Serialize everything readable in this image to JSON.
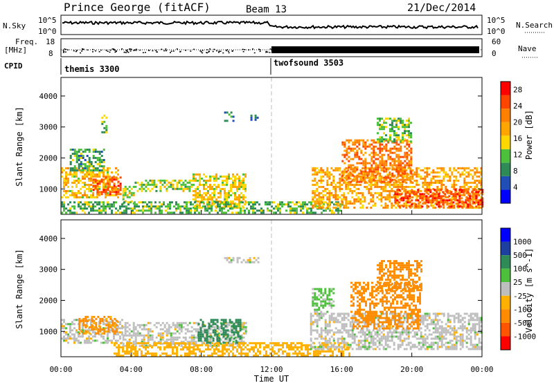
{
  "header": {
    "title": "Prince George (fitACF)",
    "beam": "Beam 13",
    "date": "21/Dec/2014"
  },
  "status_panels": {
    "nsky_label": "N.Sky",
    "nsearch_label": "N.Search",
    "nsky_ticks": [
      "10^5",
      "10^0"
    ],
    "nsearch_ticks": [
      "10^5",
      "10^0"
    ],
    "freq_label": "Freq.",
    "freq_unit": "[MHz]",
    "freq_ticks": [
      "18",
      "8"
    ],
    "nave_label": "Nave",
    "nave_ticks": [
      "60",
      "0"
    ],
    "cpid_label": "CPID",
    "cpid_segments": [
      {
        "name": "themis 3300",
        "start_hour": 0
      },
      {
        "name": "twofsound 3503",
        "start_hour": 12
      }
    ]
  },
  "colors": {
    "power_scale": [
      "#0000ff",
      "#1f4fb4",
      "#2e8b57",
      "#4cbf3c",
      "#ffd700",
      "#ffa500",
      "#ff7f00",
      "#ff4500",
      "#ff0000"
    ],
    "velocity_scale": [
      "#0000ff",
      "#1c3fa0",
      "#2e8b57",
      "#4cbf3c",
      "#bebebe",
      "#ffb000",
      "#ff8c00",
      "#ff5500",
      "#ff0000"
    ],
    "ground_scatter": "#c0c0c0"
  },
  "chart_data": [
    {
      "type": "heatmap",
      "name": "power",
      "ylabel": "Slant Range [km]",
      "xlim_hours": [
        0,
        24
      ],
      "ylim": [
        180,
        4600
      ],
      "y_ticks": [
        1000,
        2000,
        3000,
        4000
      ],
      "colorbar_label": "Power [dB]",
      "colorbar_ticks": [
        4,
        8,
        12,
        16,
        20,
        24,
        28
      ],
      "clim": [
        0,
        30
      ],
      "regions": [
        {
          "t0": 0.0,
          "t1": 3.2,
          "r0": 700,
          "r1": 1700,
          "v": 17
        },
        {
          "t0": 1.8,
          "t1": 3.4,
          "r0": 800,
          "r1": 1400,
          "v": 25
        },
        {
          "t0": 0.5,
          "t1": 2.5,
          "r0": 1600,
          "r1": 2300,
          "v": 10
        },
        {
          "t0": 2.3,
          "t1": 2.6,
          "r0": 2800,
          "r1": 3400,
          "v": 12
        },
        {
          "t0": 3.5,
          "t1": 4.2,
          "r0": 500,
          "r1": 1100,
          "v": 14
        },
        {
          "t0": 4.2,
          "t1": 7.5,
          "r0": 900,
          "r1": 1300,
          "v": 13
        },
        {
          "t0": 7.5,
          "t1": 10.5,
          "r0": 400,
          "r1": 1500,
          "v": 16
        },
        {
          "t0": 9.3,
          "t1": 9.8,
          "r0": 3200,
          "r1": 3500,
          "v": 7
        },
        {
          "t0": 10.8,
          "t1": 11.2,
          "r0": 3200,
          "r1": 3400,
          "v": 7
        },
        {
          "t0": 0.0,
          "t1": 16.0,
          "r0": 200,
          "r1": 600,
          "v": 11
        },
        {
          "t0": 14.3,
          "t1": 24.0,
          "r0": 400,
          "r1": 1700,
          "v": 19
        },
        {
          "t0": 19.0,
          "t1": 24.0,
          "r0": 400,
          "r1": 1000,
          "v": 25
        },
        {
          "t0": 16.0,
          "t1": 20.0,
          "r0": 1200,
          "r1": 2600,
          "v": 22
        },
        {
          "t0": 18.0,
          "t1": 20.0,
          "r0": 2500,
          "r1": 3300,
          "v": 12
        }
      ]
    },
    {
      "type": "heatmap",
      "name": "velocity",
      "xlabel": "Time UT",
      "ylabel": "Slant Range [km]",
      "xlim_hours": [
        0,
        24
      ],
      "x_ticks": [
        "00:00",
        "04:00",
        "08:00",
        "12:00",
        "16:00",
        "20:00",
        "00:00"
      ],
      "ylim": [
        180,
        4600
      ],
      "y_ticks": [
        1000,
        2000,
        3000,
        4000
      ],
      "colorbar_label": "Velocity [m s^-1]",
      "colorbar_ticks": [
        "1000",
        "500",
        "100",
        "25",
        "-25",
        "-100",
        "-500",
        "-1000"
      ],
      "regions": [
        {
          "t0": 0.0,
          "t1": 3.5,
          "r0": 600,
          "r1": 1400,
          "v": 0
        },
        {
          "t0": 1.0,
          "t1": 3.2,
          "r0": 900,
          "r1": 1500,
          "v": -120
        },
        {
          "t0": 3.5,
          "t1": 10.5,
          "r0": 500,
          "r1": 1300,
          "v": 0
        },
        {
          "t0": 7.8,
          "t1": 10.2,
          "r0": 600,
          "r1": 1400,
          "v": 300
        },
        {
          "t0": 9.3,
          "t1": 11.2,
          "r0": 3200,
          "r1": 3400,
          "v": 0
        },
        {
          "t0": 3.0,
          "t1": 16.5,
          "r0": 200,
          "r1": 650,
          "v": -60
        },
        {
          "t0": 14.2,
          "t1": 24.0,
          "r0": 400,
          "r1": 1600,
          "v": 0
        },
        {
          "t0": 16.5,
          "t1": 20.5,
          "r0": 1100,
          "r1": 2600,
          "v": -200
        },
        {
          "t0": 18.0,
          "t1": 20.5,
          "r0": 2300,
          "r1": 3300,
          "v": -350
        },
        {
          "t0": 14.3,
          "t1": 15.5,
          "r0": 1600,
          "r1": 2400,
          "v": 40
        }
      ]
    }
  ]
}
